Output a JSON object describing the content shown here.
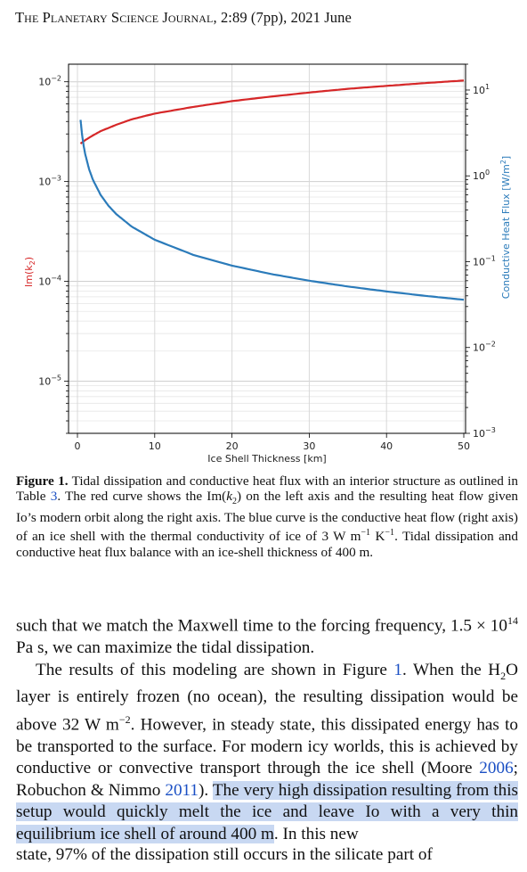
{
  "header": {
    "journal": "The Planetary Science Journal",
    "citation": ", 2:89 (7pp), 2021 June"
  },
  "chart_data": {
    "type": "line",
    "xlabel": "Ice Shell Thickness [km]",
    "ylabel_left": "Im(k",
    "ylabel_left_sub": "2",
    "ylabel_left_close": ")",
    "ylabel_right": "Conductive Heat Flux [W/m",
    "ylabel_right_sup": "2",
    "ylabel_right_close": "]",
    "xlim": [
      0,
      50
    ],
    "x_ticks": [
      "0",
      "10",
      "20",
      "30",
      "40",
      "50"
    ],
    "left_axis": {
      "scale": "log",
      "ylim": [
        3e-06,
        0.015
      ],
      "ticks": [
        "10",
        "10",
        "10",
        "10"
      ],
      "tick_exponents": [
        "−2",
        "−3",
        "−4",
        "−5"
      ]
    },
    "right_axis": {
      "scale": "log",
      "ylim": [
        0.001,
        20
      ],
      "ticks": [
        "10",
        "10",
        "10",
        "10",
        "10"
      ],
      "tick_exponents": [
        "1",
        "0",
        "−1",
        "−2",
        "−3"
      ]
    },
    "grid": true,
    "series": [
      {
        "axis": "left",
        "color": "#d62728",
        "x": [
          0.4,
          1,
          2,
          3,
          5,
          7,
          10,
          15,
          20,
          25,
          30,
          35,
          40,
          45,
          50
        ],
        "y": [
          0.0024,
          0.0026,
          0.0029,
          0.0032,
          0.0037,
          0.0042,
          0.0048,
          0.0056,
          0.0064,
          0.0071,
          0.0078,
          0.0085,
          0.0091,
          0.0097,
          0.0103
        ]
      },
      {
        "axis": "right",
        "color": "#1f77b4",
        "x": [
          0.4,
          0.6,
          0.8,
          1,
          1.5,
          2,
          3,
          4,
          5,
          7,
          10,
          15,
          20,
          25,
          30,
          35,
          40,
          45,
          50
        ],
        "y": [
          4.5,
          3.0,
          2.25,
          1.8,
          1.2,
          0.9,
          0.6,
          0.45,
          0.36,
          0.257,
          0.18,
          0.12,
          0.09,
          0.072,
          0.06,
          0.0514,
          0.045,
          0.04,
          0.036
        ]
      }
    ]
  },
  "caption": {
    "label": "Figure 1.",
    "part1": " Tidal dissipation and conductive heat flux with an interior structure as outlined in Table ",
    "table_ref": "3",
    "part2": ". The red curve shows the Im(",
    "k": "k",
    "k_sub": "2",
    "part3": ") on the left axis and the resulting heat flow given Io’s modern orbit along the right axis. The blue curve is the conductive heat flow (right axis) of an ice shell with the thermal conductivity of ice of 3 W m",
    "sup1": "−1",
    "part4": " K",
    "sup2": "−1",
    "part5": ". Tidal dissipation and conductive heat flux balance with an ice-shell thickness of 400 m."
  },
  "body": {
    "p1_a": "such that we match the Maxwell time to the forcing frequency, 1.5 × 10",
    "p1_sup": "14",
    "p1_b": " Pa s, we can maximize the tidal dissipation.",
    "p2_a": "The results of this modeling are shown in Figure ",
    "p2_fig": "1",
    "p2_b": ". When the H",
    "p2_sub": "2",
    "p2_c": "O layer is entirely frozen (no ocean), the resulting dissipation would be above 32 W m",
    "p2_sup": "−2",
    "p2_d": ". However, in steady state, this dissipated energy has to be transported to the surface. For modern icy worlds, this is achieved by conductive or convective transport through the ice shell (Moore ",
    "p2_ref1": "2006",
    "p2_e": "; Robuchon & Nimmo ",
    "p2_ref2": "2011",
    "p2_f": "). ",
    "p2_highlight": "The very high dissipation resulting from this setup would quickly melt the ice and leave Io with a very thin equilibrium ice shell of around 400 m",
    "p2_g": ". In this new",
    "p3_cut": "state, 97% of the dissipation still occurs in the silicate part of"
  }
}
